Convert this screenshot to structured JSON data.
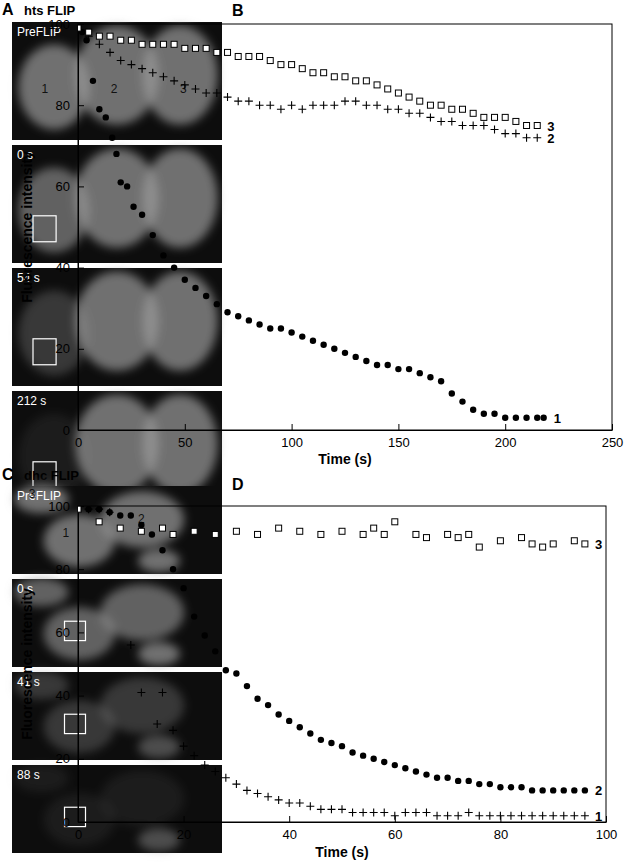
{
  "chart_data": [
    {
      "type": "scatter",
      "title": "B",
      "x_label": "Time (s)",
      "y_label": "Fluorescence intensity",
      "xlim": [
        0,
        250
      ],
      "xticks": [
        0,
        50,
        100,
        150,
        200,
        250
      ],
      "ylim": [
        0,
        100
      ],
      "yticks": [
        0,
        20,
        40,
        60,
        80,
        100
      ],
      "grid": false,
      "series": [
        {
          "name": "1",
          "color": "#000000",
          "marker": "circle",
          "x": [
            0,
            2,
            4,
            7,
            10,
            13,
            16,
            18,
            20,
            23,
            26,
            30,
            35,
            40,
            45,
            50,
            55,
            60,
            65,
            70,
            75,
            80,
            85,
            90,
            95,
            100,
            105,
            110,
            115,
            120,
            125,
            130,
            135,
            140,
            145,
            150,
            155,
            160,
            165,
            170,
            175,
            180,
            185,
            190,
            195,
            200,
            205,
            210,
            215,
            218
          ],
          "values": [
            100,
            98,
            96,
            86,
            79,
            77,
            72,
            68,
            61,
            60,
            55,
            53,
            48,
            43,
            40,
            37,
            35,
            33,
            31,
            29,
            28,
            27,
            26,
            25,
            25,
            24,
            23,
            22,
            21,
            20,
            19,
            18,
            17,
            16,
            16,
            15,
            15,
            14,
            13,
            12,
            9,
            7,
            5,
            4,
            4,
            3,
            3,
            3,
            3,
            3
          ]
        },
        {
          "name": "2",
          "color": "#000000",
          "marker": "plus",
          "x": [
            0,
            5,
            10,
            15,
            20,
            25,
            30,
            35,
            40,
            45,
            50,
            55,
            60,
            65,
            70,
            75,
            80,
            85,
            90,
            95,
            100,
            105,
            110,
            115,
            120,
            125,
            130,
            135,
            140,
            145,
            150,
            155,
            160,
            165,
            170,
            175,
            180,
            185,
            190,
            195,
            200,
            205,
            210,
            215
          ],
          "values": [
            100,
            97,
            95,
            93,
            91,
            90,
            89,
            88,
            87,
            86,
            85,
            84,
            83,
            83,
            82,
            81,
            81,
            80,
            80,
            79,
            80,
            79,
            80,
            80,
            80,
            81,
            81,
            80,
            80,
            79,
            79,
            78,
            78,
            77,
            76,
            76,
            75,
            75,
            75,
            74,
            73,
            73,
            72,
            72
          ]
        },
        {
          "name": "3",
          "color": "#000000",
          "marker": "square",
          "x": [
            0,
            5,
            10,
            15,
            20,
            25,
            30,
            35,
            40,
            45,
            50,
            55,
            60,
            65,
            70,
            75,
            80,
            85,
            90,
            95,
            100,
            105,
            110,
            115,
            120,
            125,
            130,
            135,
            140,
            145,
            150,
            155,
            160,
            165,
            170,
            175,
            180,
            185,
            190,
            195,
            200,
            205,
            210,
            215
          ],
          "values": [
            99,
            98,
            97,
            97,
            96,
            96,
            95,
            95,
            95,
            95,
            94,
            94,
            94,
            93,
            93,
            92,
            92,
            92,
            91,
            90,
            90,
            89,
            88,
            88,
            87,
            87,
            86,
            86,
            85,
            84,
            83,
            82,
            81,
            80,
            80,
            79,
            79,
            78,
            77,
            77,
            77,
            76,
            75,
            75
          ]
        }
      ]
    },
    {
      "type": "scatter",
      "title": "D",
      "x_label": "Time (s)",
      "y_label": "Fluorescence intensity",
      "xlim": [
        0,
        100
      ],
      "xticks": [
        0,
        20,
        40,
        60,
        80,
        100
      ],
      "ylim": [
        0,
        100
      ],
      "yticks": [
        0,
        20,
        40,
        60,
        80,
        100
      ],
      "grid": false,
      "series": [
        {
          "name": "1",
          "color": "#000000",
          "marker": "plus",
          "x": [
            0,
            2,
            4,
            6,
            10,
            12,
            15,
            16,
            18,
            20,
            22,
            24,
            26,
            28,
            30,
            32,
            34,
            36,
            38,
            40,
            42,
            44,
            46,
            48,
            50,
            52,
            54,
            56,
            58,
            60,
            62,
            64,
            66,
            68,
            70,
            72,
            74,
            76,
            78,
            80,
            82,
            84,
            86,
            88,
            90,
            92,
            94,
            96
          ],
          "values": [
            100,
            99,
            99,
            98,
            56,
            41,
            31,
            41,
            29,
            24,
            21,
            18,
            16,
            14,
            12,
            10,
            9,
            8,
            7,
            6,
            6,
            5,
            4,
            4,
            4,
            3,
            3,
            3,
            3,
            2,
            3,
            3,
            3,
            2,
            2,
            2,
            3,
            2,
            2,
            2,
            2,
            2,
            2,
            2,
            2,
            2,
            2,
            2
          ]
        },
        {
          "name": "2",
          "color": "#000000",
          "marker": "circle",
          "x": [
            0,
            2,
            4,
            6,
            8,
            10,
            12,
            14,
            16,
            18,
            20,
            22,
            24,
            26,
            28,
            30,
            32,
            34,
            36,
            38,
            40,
            42,
            44,
            46,
            48,
            50,
            52,
            54,
            56,
            58,
            60,
            62,
            64,
            66,
            68,
            70,
            72,
            74,
            76,
            78,
            80,
            82,
            84,
            86,
            88,
            90,
            92,
            94,
            96
          ],
          "values": [
            100,
            99,
            99,
            98,
            97,
            97,
            94,
            91,
            86,
            80,
            74,
            65,
            59,
            54,
            48,
            47,
            43,
            39,
            37,
            34,
            32,
            30,
            28,
            26,
            25,
            24,
            22,
            21,
            20,
            19,
            18,
            17,
            16,
            15,
            14,
            14,
            13,
            13,
            12,
            12,
            11,
            11,
            11,
            10,
            10,
            10,
            10,
            10,
            10
          ]
        },
        {
          "name": "3",
          "color": "#000000",
          "marker": "square",
          "x": [
            0,
            4,
            8,
            12,
            16,
            18,
            22,
            26,
            30,
            34,
            38,
            42,
            46,
            50,
            54,
            56,
            58,
            60,
            64,
            66,
            70,
            72,
            74,
            76,
            80,
            84,
            86,
            88,
            90,
            94,
            96
          ],
          "values": [
            99,
            95,
            93,
            92,
            93,
            91,
            92,
            91,
            92,
            91,
            93,
            92,
            91,
            92,
            91,
            93,
            91,
            95,
            91,
            90,
            91,
            90,
            91,
            87,
            89,
            90,
            88,
            87,
            88,
            89,
            88
          ]
        }
      ]
    }
  ],
  "image_panels": [
    {
      "label": "A",
      "title": "hts FLIP",
      "frames": [
        {
          "label": "PreFLIP",
          "region_labels": [
            "1",
            "2",
            "3"
          ]
        },
        {
          "label": "0 s"
        },
        {
          "label": "54 s"
        },
        {
          "label": "212 s"
        }
      ]
    },
    {
      "label": "C",
      "title": "dhc FLIP",
      "frames": [
        {
          "label": "PreFLIP",
          "region_labels": [
            "3",
            "1",
            "2"
          ]
        },
        {
          "label": "0 s"
        },
        {
          "label": "41 s"
        },
        {
          "label": "88 s"
        }
      ]
    }
  ]
}
